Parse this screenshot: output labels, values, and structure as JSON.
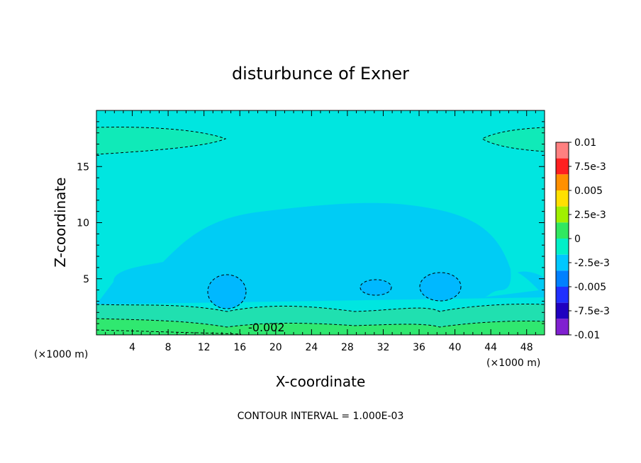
{
  "colors": {
    "background": "#ffffff",
    "field_base": "#00e6e0",
    "region_minus5": "#00e8f0",
    "region_minus_5_deep": "#00c8ff",
    "region_plus_band": "#20e890",
    "region_zero_band": "#30e860"
  },
  "chart_data": {
    "type": "heatmap",
    "subtype": "filled-contour",
    "title": "disturbunce of Exner",
    "xlabel": "X-coordinate",
    "ylabel": "Z-coordinate",
    "x_unit_label": "(×1000 m)",
    "x_unit_label_right": "(×1000 m)",
    "xlim": [
      0,
      50
    ],
    "ylim": [
      0,
      20
    ],
    "x_ticks": [
      4,
      8,
      12,
      16,
      20,
      24,
      28,
      32,
      36,
      40,
      44,
      48
    ],
    "y_ticks": [
      5,
      10,
      15
    ],
    "contour_interval_text": "CONTOUR INTERVAL = 1.000E-03",
    "inline_contour_label": "-0.002",
    "colorbar": {
      "labels": [
        "0.01",
        "7.5e-3",
        "0.005",
        "2.5e-3",
        "0",
        "-2.5e-3",
        "-0.005",
        "-7.5e-3",
        "-0.01"
      ],
      "levels": [
        0.01,
        0.0075,
        0.005,
        0.0025,
        0,
        -0.0025,
        -0.005,
        -0.0075,
        -0.01
      ],
      "colors": [
        "#ff8080",
        "#ff2020",
        "#ff9000",
        "#ffe000",
        "#a0f000",
        "#30e860",
        "#00f0c8",
        "#00c8ff",
        "#0080ff",
        "#2030ff",
        "#2000c0",
        "#8020d0"
      ]
    }
  }
}
